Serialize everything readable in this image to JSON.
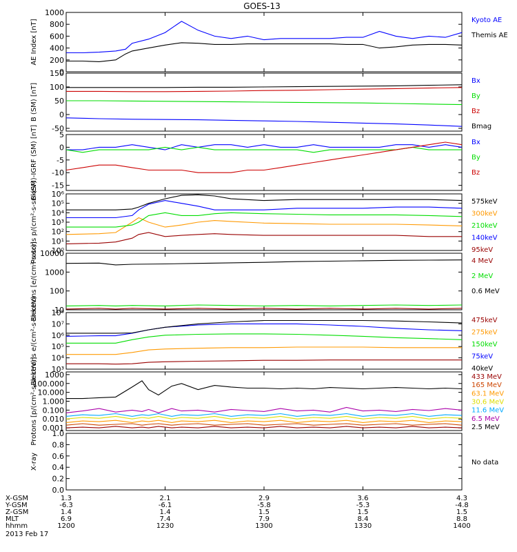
{
  "title": "GOES-13",
  "date_label": "2013 Feb 17",
  "colors": {
    "black": "#000000",
    "blue": "#0000ff",
    "green": "#00dd00",
    "red": "#cc0000",
    "darkred": "#990000",
    "orange": "#ff9900",
    "yellow": "#dddd00",
    "cyan": "#00aaff",
    "purple": "#aa00aa",
    "dark_orange": "#cc4400"
  },
  "time_axis": {
    "rows": [
      {
        "label": "X-GSM",
        "values": [
          "1.3",
          "2.1",
          "2.9",
          "3.6",
          "4.3"
        ]
      },
      {
        "label": "Y-GSM",
        "values": [
          "-6.3",
          "-6.1",
          "-5.8",
          "-5.3",
          "-4.8"
        ]
      },
      {
        "label": "Z-GSM",
        "values": [
          "1.4",
          "1.4",
          "1.5",
          "1.5",
          "1.5"
        ]
      },
      {
        "label": "MLT",
        "values": [
          "6.9",
          "7.4",
          "7.9",
          "8.4",
          "8.8"
        ]
      },
      {
        "label": "hhmm",
        "values": [
          "1200",
          "1230",
          "1300",
          "1330",
          "1400"
        ]
      }
    ]
  },
  "chart_data": [
    {
      "type": "line",
      "ylabel": "AE Index [nT]",
      "ylim": [
        0,
        1000
      ],
      "yticks": [
        "0",
        "200",
        "400",
        "600",
        "800",
        "1000"
      ],
      "x": [
        1200,
        1205,
        1210,
        1215,
        1218,
        1220,
        1225,
        1230,
        1235,
        1240,
        1245,
        1250,
        1255,
        1300,
        1305,
        1310,
        1315,
        1320,
        1325,
        1330,
        1335,
        1340,
        1345,
        1350,
        1355,
        1400
      ],
      "series": [
        {
          "name": "Kyoto AE",
          "color": "#0000ff",
          "values": [
            320,
            320,
            330,
            350,
            380,
            480,
            550,
            660,
            850,
            700,
            600,
            560,
            600,
            540,
            560,
            560,
            560,
            560,
            580,
            580,
            680,
            600,
            560,
            600,
            580,
            660
          ]
        },
        {
          "name": "Themis AE",
          "color": "#000000",
          "values": [
            180,
            180,
            170,
            200,
            300,
            350,
            400,
            450,
            490,
            480,
            460,
            460,
            470,
            470,
            470,
            470,
            470,
            470,
            460,
            460,
            400,
            420,
            450,
            460,
            460,
            450
          ]
        }
      ]
    },
    {
      "type": "line",
      "ylabel": "B (SM) [nT]",
      "ylim": [
        -60,
        150
      ],
      "yticks": [
        "-50",
        "0",
        "50",
        "100",
        "150"
      ],
      "x": [
        1200,
        1210,
        1220,
        1230,
        1240,
        1250,
        1300,
        1310,
        1320,
        1330,
        1340,
        1350,
        1400
      ],
      "series": [
        {
          "name": "Bx",
          "color": "#0000ff",
          "values": [
            -12,
            -15,
            -17,
            -18,
            -19,
            -21,
            -23,
            -25,
            -28,
            -31,
            -34,
            -38,
            -43
          ]
        },
        {
          "name": "By",
          "color": "#00dd00",
          "values": [
            50,
            50,
            49,
            48,
            47,
            46,
            45,
            44,
            43,
            42,
            40,
            38,
            36
          ]
        },
        {
          "name": "Bz",
          "color": "#cc0000",
          "values": [
            84,
            84,
            83,
            83,
            84,
            85,
            87,
            88,
            90,
            92,
            94,
            96,
            98
          ]
        },
        {
          "name": "Bmag",
          "color": "#000000",
          "values": [
            98,
            98,
            98,
            98,
            99,
            99,
            100,
            101,
            102,
            103,
            104,
            106,
            108
          ]
        }
      ]
    },
    {
      "type": "line",
      "ylabel": "B (SM)-IGRF (SM) [nT]",
      "ylim": [
        -17,
        5
      ],
      "yticks": [
        "-15",
        "-10",
        "-5",
        "0",
        "5"
      ],
      "x": [
        1200,
        1205,
        1210,
        1215,
        1220,
        1225,
        1230,
        1235,
        1240,
        1245,
        1250,
        1255,
        1300,
        1305,
        1310,
        1315,
        1320,
        1325,
        1330,
        1335,
        1340,
        1345,
        1350,
        1355,
        1400
      ],
      "series": [
        {
          "name": "Bx",
          "color": "#0000ff",
          "values": [
            -1,
            -1,
            0,
            0,
            1,
            0,
            -1,
            1,
            0,
            1,
            1,
            0,
            1,
            0,
            0,
            1,
            0,
            0,
            0,
            0,
            1,
            1,
            0,
            1,
            0
          ]
        },
        {
          "name": "By",
          "color": "#00dd00",
          "values": [
            -1,
            -2,
            -1,
            -1,
            -1,
            -1,
            0,
            -1,
            0,
            -1,
            -1,
            -1,
            -1,
            -1,
            -1,
            -2,
            -1,
            -1,
            -1,
            -1,
            -1,
            0,
            -1,
            -1,
            -1
          ]
        },
        {
          "name": "Bz",
          "color": "#cc0000",
          "values": [
            -9,
            -8,
            -7,
            -7,
            -8,
            -9,
            -9,
            -9,
            -10,
            -10,
            -10,
            -9,
            -9,
            -8,
            -7,
            -6,
            -5,
            -4,
            -3,
            -2,
            -1,
            0,
            1,
            2,
            1
          ]
        }
      ]
    },
    {
      "type": "line",
      "ylabel": "Protons p/(cm²-s-sr-keV)",
      "scale": "log",
      "ylim": [
        1,
        1000000
      ],
      "yticks": [
        "10⁰",
        "10¹",
        "10²",
        "10³",
        "10⁴",
        "10⁵",
        "10⁶"
      ],
      "x": [
        1200,
        1210,
        1215,
        1220,
        1222,
        1225,
        1230,
        1235,
        1240,
        1245,
        1250,
        1300,
        1310,
        1320,
        1330,
        1340,
        1350,
        1400
      ],
      "series": [
        {
          "name": "575keV",
          "color": "#000000",
          "values": [
            20000,
            20000,
            20000,
            25000,
            40000,
            100000,
            300000,
            700000,
            800000,
            600000,
            300000,
            200000,
            250000,
            250000,
            250000,
            250000,
            250000,
            200000
          ]
        },
        {
          "name": "300keV",
          "color": "#ff9900",
          "values": [
            50,
            60,
            80,
            1000,
            3000,
            1000,
            300,
            500,
            1000,
            1500,
            1200,
            800,
            700,
            600,
            600,
            600,
            500,
            400
          ]
        },
        {
          "name": "210keV",
          "color": "#00dd00",
          "values": [
            300,
            300,
            300,
            500,
            1000,
            5000,
            10000,
            5000,
            5000,
            8000,
            10000,
            8000,
            7000,
            6000,
            6000,
            6000,
            5000,
            4000
          ]
        },
        {
          "name": "140keV",
          "color": "#0000ff",
          "values": [
            3000,
            3000,
            3000,
            5000,
            20000,
            80000,
            200000,
            100000,
            50000,
            20000,
            20000,
            20000,
            30000,
            30000,
            30000,
            40000,
            40000,
            30000
          ]
        },
        {
          "name": "95keV",
          "color": "#990000",
          "values": [
            5,
            6,
            8,
            20,
            50,
            80,
            30,
            40,
            50,
            60,
            50,
            40,
            40,
            40,
            40,
            40,
            30,
            30
          ]
        }
      ]
    },
    {
      "type": "line",
      "ylabel": "Electrons [e/(cm²-s-sr)]",
      "scale": "log",
      "ylim": [
        10,
        10000
      ],
      "yticks": [
        "10",
        "100",
        "1000",
        "10000"
      ],
      "x": [
        1200,
        1210,
        1215,
        1220,
        1230,
        1240,
        1250,
        1300,
        1310,
        1320,
        1330,
        1340,
        1350,
        1400
      ],
      "series": [
        {
          "name": "4 MeV",
          "color": "#990000",
          "values": [
            11,
            12,
            11,
            12,
            11,
            12,
            11,
            12,
            11,
            12,
            11,
            12,
            11,
            12
          ]
        },
        {
          "name": "2 MeV",
          "color": "#00dd00",
          "values": [
            16,
            17,
            16,
            17,
            16,
            18,
            17,
            16,
            17,
            16,
            17,
            18,
            17,
            18
          ]
        },
        {
          "name": "0.6 MeV",
          "color": "#000000",
          "values": [
            2900,
            3000,
            2400,
            2600,
            2700,
            2900,
            3100,
            3300,
            3600,
            3800,
            4000,
            4200,
            4300,
            4400
          ]
        }
      ]
    },
    {
      "type": "line",
      "ylabel": "Electrons e/(cm²-s-sr-keV)",
      "scale": "log",
      "ylim": [
        1000,
        100000000
      ],
      "yticks": [
        "10³",
        "10⁴",
        "10⁵",
        "10⁶",
        "10⁷",
        "10⁸"
      ],
      "x": [
        1200,
        1210,
        1215,
        1220,
        1225,
        1230,
        1240,
        1250,
        1300,
        1310,
        1320,
        1330,
        1340,
        1350,
        1400
      ],
      "series": [
        {
          "name": "475keV",
          "color": "#990000",
          "values": [
            3000,
            3000,
            2800,
            3000,
            4000,
            4500,
            5000,
            5500,
            6000,
            6000,
            6500,
            6500,
            6500,
            6500,
            6500
          ]
        },
        {
          "name": "275keV",
          "color": "#ff9900",
          "values": [
            20000,
            20000,
            20000,
            30000,
            50000,
            60000,
            70000,
            80000,
            80000,
            90000,
            90000,
            90000,
            80000,
            80000,
            80000
          ]
        },
        {
          "name": "150keV",
          "color": "#00dd00",
          "values": [
            200000,
            200000,
            200000,
            400000,
            700000,
            1000000,
            1200000,
            1300000,
            1300000,
            1200000,
            1000000,
            800000,
            600000,
            500000,
            400000
          ]
        },
        {
          "name": "75keV",
          "color": "#0000ff",
          "values": [
            800000,
            900000,
            900000,
            1500000,
            3000000,
            5000000,
            8000000,
            10000000,
            10000000,
            10000000,
            8000000,
            6000000,
            4000000,
            3000000,
            2500000
          ]
        },
        {
          "name": "40keV",
          "color": "#000000",
          "values": [
            1500000,
            1500000,
            1500000,
            1600000,
            3000000,
            5000000,
            10000000,
            15000000,
            20000000,
            20000000,
            20000000,
            20000000,
            18000000,
            15000000,
            12000000
          ]
        }
      ]
    },
    {
      "type": "line",
      "ylabel": "Protons [p/(cm²-s-sr-keV)]",
      "scale": "log",
      "ylim": [
        0.0005,
        2000
      ],
      "yticks": [
        "0.001",
        "0.010",
        "0.100",
        "1.000",
        "10.000",
        "100.000",
        "1000"
      ],
      "x": [
        1200,
        1205,
        1210,
        1215,
        1220,
        1223,
        1225,
        1228,
        1232,
        1235,
        1240,
        1245,
        1250,
        1255,
        1300,
        1305,
        1310,
        1315,
        1320,
        1325,
        1330,
        1335,
        1340,
        1345,
        1350,
        1355,
        1400
      ],
      "series": [
        {
          "name": "433 MeV",
          "color": "#990000",
          "values": [
            0.001,
            0.0012,
            0.001,
            0.0015,
            0.001,
            0.0012,
            0.001,
            0.0015,
            0.001,
            0.0012,
            0.001,
            0.0015,
            0.001,
            0.0012,
            0.001,
            0.0015,
            0.001,
            0.0012,
            0.001,
            0.0015,
            0.001,
            0.0012,
            0.001,
            0.0015,
            0.001,
            0.0012,
            0.001
          ]
        },
        {
          "name": "165 MeV",
          "color": "#cc4400",
          "values": [
            0.002,
            0.003,
            0.002,
            0.0025,
            0.003,
            0.002,
            0.0025,
            0.003,
            0.002,
            0.0025,
            0.003,
            0.002,
            0.0025,
            0.003,
            0.002,
            0.0025,
            0.003,
            0.002,
            0.0025,
            0.003,
            0.002,
            0.0025,
            0.003,
            0.002,
            0.0025,
            0.003,
            0.002
          ]
        },
        {
          "name": "63.1 MeV",
          "color": "#ff9900",
          "values": [
            0.004,
            0.006,
            0.005,
            0.007,
            0.004,
            0.006,
            0.005,
            0.007,
            0.004,
            0.006,
            0.005,
            0.007,
            0.004,
            0.006,
            0.005,
            0.007,
            0.004,
            0.006,
            0.005,
            0.007,
            0.004,
            0.006,
            0.005,
            0.007,
            0.004,
            0.006,
            0.005
          ]
        },
        {
          "name": "30.6 MeV",
          "color": "#dddd00",
          "values": [
            0.01,
            0.015,
            0.012,
            0.02,
            0.01,
            0.015,
            0.012,
            0.02,
            0.01,
            0.015,
            0.012,
            0.02,
            0.01,
            0.015,
            0.012,
            0.02,
            0.01,
            0.015,
            0.012,
            0.02,
            0.01,
            0.015,
            0.012,
            0.02,
            0.01,
            0.015,
            0.012
          ]
        },
        {
          "name": "11.6 MeV",
          "color": "#00aaff",
          "values": [
            0.02,
            0.03,
            0.025,
            0.04,
            0.02,
            0.03,
            0.025,
            0.04,
            0.02,
            0.03,
            0.025,
            0.04,
            0.02,
            0.03,
            0.025,
            0.04,
            0.02,
            0.03,
            0.025,
            0.04,
            0.02,
            0.03,
            0.025,
            0.04,
            0.02,
            0.03,
            0.025
          ]
        },
        {
          "name": "6.5 MeV",
          "color": "#aa00aa",
          "values": [
            0.05,
            0.08,
            0.15,
            0.06,
            0.1,
            0.07,
            0.12,
            0.05,
            0.15,
            0.08,
            0.1,
            0.06,
            0.12,
            0.09,
            0.07,
            0.15,
            0.08,
            0.1,
            0.06,
            0.2,
            0.08,
            0.1,
            0.07,
            0.12,
            0.09,
            0.15,
            0.1
          ]
        },
        {
          "name": "2.5 MeV",
          "color": "#000000",
          "values": [
            2,
            2,
            2.5,
            3,
            40,
            200,
            20,
            5,
            50,
            100,
            20,
            60,
            40,
            30,
            30,
            25,
            30,
            25,
            35,
            30,
            25,
            30,
            35,
            30,
            25,
            30,
            25
          ]
        }
      ]
    },
    {
      "type": "line",
      "ylabel": "X-ray",
      "ylim": [
        0,
        1
      ],
      "yticks": [
        "0.0",
        "0.2",
        "0.4",
        "0.6",
        "0.8",
        "1.0"
      ],
      "series": [],
      "note": "No data"
    }
  ]
}
